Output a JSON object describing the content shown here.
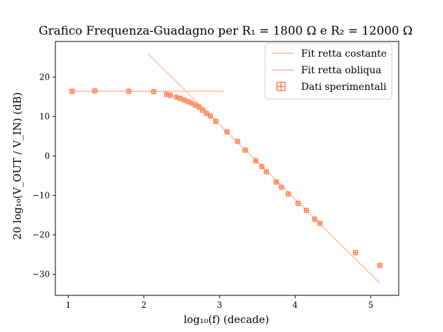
{
  "chart_data": {
    "type": "scatter",
    "title": "Grafico Frequenza-Guadagno per R₁ = 1800 Ω e R₂ = 12000 Ω",
    "xlabel": "log₁₀(f) (decade)",
    "ylabel": "20 log₁₀(V_OUT / V_IN) (dB)",
    "xlim": [
      0.83,
      5.37
    ],
    "ylim": [
      -35.3,
      29.0
    ],
    "x_ticks": [
      1,
      2,
      3,
      4,
      5
    ],
    "y_ticks": [
      -30,
      -20,
      -10,
      0,
      10,
      20
    ],
    "x_tick_labels": [
      "1",
      "2",
      "3",
      "4",
      "5"
    ],
    "y_tick_labels": [
      "−30",
      "−20",
      "−10",
      "0",
      "10",
      "20"
    ],
    "grid": false,
    "legend_position": "top-right",
    "colors": {
      "data": "#ff7f50",
      "fit_lines": "#ffc8b4"
    },
    "series": [
      {
        "name": "Fit retta costante",
        "kind": "line",
        "x": [
          1.05,
          3.05
        ],
        "y": [
          16.4,
          16.4
        ]
      },
      {
        "name": "Fit retta obliqua",
        "kind": "line",
        "x": [
          2.05,
          5.12
        ],
        "y": [
          26.0,
          -32.2
        ]
      },
      {
        "name": "Dati sperimentali",
        "kind": "errorbar",
        "x": [
          1.05,
          1.35,
          1.8,
          2.13,
          2.3,
          2.35,
          2.43,
          2.48,
          2.53,
          2.58,
          2.63,
          2.68,
          2.73,
          2.78,
          2.83,
          2.88,
          2.95,
          3.1,
          3.24,
          3.34,
          3.48,
          3.56,
          3.62,
          3.75,
          3.82,
          3.91,
          4.04,
          4.15,
          4.26,
          4.33,
          4.8,
          5.12
        ],
        "y": [
          16.4,
          16.5,
          16.4,
          16.3,
          15.6,
          15.4,
          14.9,
          14.6,
          14.2,
          13.8,
          13.4,
          12.9,
          12.4,
          11.6,
          10.8,
          10.1,
          8.8,
          6.1,
          3.7,
          1.5,
          -1.2,
          -2.7,
          -4.0,
          -6.6,
          -7.9,
          -9.6,
          -12.0,
          -13.8,
          -16.0,
          -17.1,
          -24.5,
          -27.7
        ]
      }
    ]
  }
}
